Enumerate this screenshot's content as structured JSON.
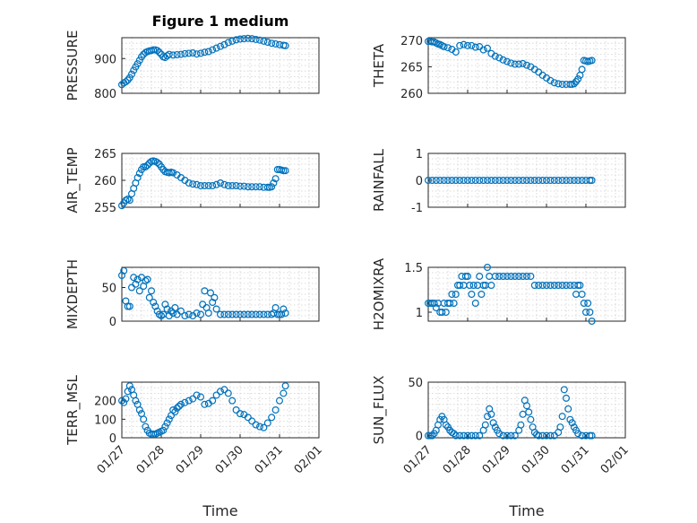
{
  "figure": {
    "title": "Figure 1 medium",
    "xlabel": "Time"
  },
  "colors": {
    "marker": "#0072BD",
    "axis": "#262626",
    "grid": "#d0d0d0"
  },
  "chart_data": [
    {
      "type": "scatter",
      "name": "PRESSURE",
      "ylabel": "PRESSURE",
      "ylim": [
        800,
        960
      ],
      "yticks": [
        800,
        900
      ],
      "xlim": [
        0,
        5
      ],
      "x": [
        0,
        0.05,
        0.1,
        0.15,
        0.2,
        0.25,
        0.3,
        0.35,
        0.4,
        0.45,
        0.5,
        0.55,
        0.6,
        0.65,
        0.7,
        0.75,
        0.8,
        0.85,
        0.9,
        0.95,
        1.0,
        1.05,
        1.1,
        1.15,
        1.2,
        1.3,
        1.4,
        1.5,
        1.6,
        1.7,
        1.8,
        1.9,
        2.0,
        2.1,
        2.2,
        2.3,
        2.4,
        2.5,
        2.6,
        2.7,
        2.8,
        2.9,
        3.0,
        3.1,
        3.2,
        3.3,
        3.4,
        3.5,
        3.6,
        3.7,
        3.8,
        3.9,
        4.0,
        4.1,
        4.15
      ],
      "y": [
        825,
        830,
        833,
        838,
        845,
        855,
        866,
        876,
        885,
        895,
        905,
        912,
        917,
        920,
        922,
        923,
        925,
        925,
        923,
        918,
        912,
        905,
        903,
        908,
        912,
        910,
        911,
        912,
        914,
        915,
        916,
        913,
        915,
        918,
        920,
        925,
        930,
        935,
        940,
        946,
        950,
        954,
        956,
        957,
        958,
        957,
        955,
        953,
        950,
        947,
        944,
        942,
        940,
        938,
        937
      ]
    },
    {
      "type": "scatter",
      "name": "THETA",
      "ylabel": "THETA",
      "ylim": [
        260,
        270.5
      ],
      "yticks": [
        260,
        265,
        270
      ],
      "xlim": [
        0,
        5
      ],
      "x": [
        0,
        0.05,
        0.1,
        0.15,
        0.2,
        0.25,
        0.3,
        0.35,
        0.4,
        0.5,
        0.6,
        0.7,
        0.8,
        0.9,
        1.0,
        1.1,
        1.2,
        1.3,
        1.4,
        1.5,
        1.6,
        1.7,
        1.8,
        1.9,
        2.0,
        2.1,
        2.2,
        2.3,
        2.4,
        2.5,
        2.6,
        2.7,
        2.8,
        2.9,
        3.0,
        3.1,
        3.2,
        3.3,
        3.4,
        3.5,
        3.6,
        3.65,
        3.7,
        3.75,
        3.8,
        3.85,
        3.9,
        3.95,
        4.0,
        4.05,
        4.1,
        4.15
      ],
      "y": [
        269.8,
        269.8,
        269.7,
        269.7,
        269.5,
        269.3,
        269.2,
        269,
        268.8,
        268.6,
        268.3,
        267.8,
        269,
        269.2,
        269,
        269,
        268.7,
        268.8,
        268.2,
        268.5,
        267.5,
        267,
        266.7,
        266.3,
        266,
        265.7,
        265.5,
        265.5,
        265.6,
        265.3,
        265,
        264.5,
        264,
        263.4,
        262.9,
        262.4,
        262,
        261.8,
        261.7,
        261.7,
        261.7,
        261.7,
        261.8,
        262.2,
        262.7,
        263.4,
        264.5,
        266.2,
        266.1,
        266,
        266.1,
        266.2
      ]
    },
    {
      "type": "scatter",
      "name": "AIR_TEMP",
      "ylabel": "AIR_TEMP",
      "ylim": [
        255,
        265
      ],
      "yticks": [
        255,
        260,
        265
      ],
      "xlim": [
        0,
        5
      ],
      "x": [
        0,
        0.05,
        0.1,
        0.15,
        0.2,
        0.25,
        0.3,
        0.35,
        0.4,
        0.45,
        0.5,
        0.55,
        0.6,
        0.65,
        0.7,
        0.75,
        0.8,
        0.85,
        0.9,
        0.95,
        1.0,
        1.05,
        1.1,
        1.15,
        1.2,
        1.25,
        1.3,
        1.4,
        1.5,
        1.6,
        1.7,
        1.8,
        1.9,
        2.0,
        2.1,
        2.2,
        2.3,
        2.4,
        2.5,
        2.6,
        2.7,
        2.8,
        2.9,
        3.0,
        3.1,
        3.2,
        3.3,
        3.4,
        3.5,
        3.6,
        3.7,
        3.75,
        3.8,
        3.85,
        3.9,
        3.95,
        4.0,
        4.05,
        4.1,
        4.15
      ],
      "y": [
        255.3,
        255.8,
        256.3,
        256.5,
        256.3,
        257.5,
        258.5,
        259.5,
        260.5,
        261.3,
        262,
        262.5,
        262.5,
        262.8,
        263.2,
        263.5,
        263.6,
        263.5,
        263.3,
        263,
        262.5,
        262,
        261.6,
        261.5,
        261.4,
        261.5,
        261.4,
        261,
        260.5,
        260,
        259.5,
        259.3,
        259.2,
        259,
        259,
        259,
        259,
        259.2,
        259.5,
        259.2,
        259,
        259,
        259,
        258.9,
        258.9,
        258.8,
        258.8,
        258.8,
        258.8,
        258.7,
        258.7,
        258.7,
        258.8,
        259.5,
        260.3,
        262,
        262,
        261.9,
        261.8,
        261.8
      ]
    },
    {
      "type": "scatter",
      "name": "RAINFALL",
      "ylabel": "RAINFALL",
      "ylim": [
        -1,
        1
      ],
      "yticks": [
        -1,
        0,
        1
      ],
      "xlim": [
        0,
        5
      ],
      "x": [
        0,
        0.1,
        0.2,
        0.3,
        0.4,
        0.5,
        0.6,
        0.7,
        0.8,
        0.9,
        1.0,
        1.1,
        1.2,
        1.3,
        1.4,
        1.5,
        1.6,
        1.7,
        1.8,
        1.9,
        2.0,
        2.1,
        2.2,
        2.3,
        2.4,
        2.5,
        2.6,
        2.7,
        2.8,
        2.9,
        3.0,
        3.1,
        3.2,
        3.3,
        3.4,
        3.5,
        3.6,
        3.7,
        3.8,
        3.9,
        4.0,
        4.1,
        4.15
      ],
      "y": [
        0,
        0,
        0,
        0,
        0,
        0,
        0,
        0,
        0,
        0,
        0,
        0,
        0,
        0,
        0,
        0,
        0,
        0,
        0,
        0,
        0,
        0,
        0,
        0,
        0,
        0,
        0,
        0,
        0,
        0,
        0,
        0,
        0,
        0,
        0,
        0,
        0,
        0,
        0,
        0,
        0,
        0,
        0
      ]
    },
    {
      "type": "scatter",
      "name": "MIXDEPTH",
      "ylabel": "MIXDEPTH",
      "ylim": [
        0,
        80
      ],
      "yticks": [
        0,
        50
      ],
      "xlim": [
        0,
        5
      ],
      "x": [
        0,
        0.05,
        0.1,
        0.15,
        0.2,
        0.25,
        0.3,
        0.35,
        0.4,
        0.45,
        0.5,
        0.55,
        0.6,
        0.65,
        0.7,
        0.75,
        0.8,
        0.85,
        0.9,
        0.95,
        1.0,
        1.05,
        1.1,
        1.15,
        1.2,
        1.25,
        1.3,
        1.35,
        1.4,
        1.5,
        1.6,
        1.7,
        1.8,
        1.9,
        2.0,
        2.05,
        2.1,
        2.15,
        2.2,
        2.25,
        2.3,
        2.35,
        2.4,
        2.5,
        2.6,
        2.7,
        2.8,
        2.9,
        3.0,
        3.1,
        3.2,
        3.3,
        3.4,
        3.5,
        3.6,
        3.7,
        3.8,
        3.85,
        3.9,
        3.95,
        4.0,
        4.05,
        4.1,
        4.15
      ],
      "y": [
        68,
        75,
        30,
        22,
        22,
        50,
        65,
        55,
        62,
        45,
        65,
        52,
        60,
        62,
        35,
        45,
        28,
        22,
        15,
        10,
        8,
        10,
        25,
        18,
        8,
        15,
        12,
        20,
        10,
        15,
        8,
        10,
        8,
        12,
        10,
        25,
        45,
        20,
        12,
        42,
        28,
        35,
        18,
        10,
        10,
        10,
        10,
        10,
        10,
        10,
        10,
        10,
        10,
        10,
        10,
        10,
        10,
        12,
        20,
        10,
        10,
        10,
        18,
        12
      ]
    },
    {
      "type": "scatter",
      "name": "H2OMIXRA",
      "ylabel": "H2OMIXRA",
      "ylim": [
        0.9,
        1.5
      ],
      "yticks": [
        1,
        1.5
      ],
      "xlim": [
        0,
        5
      ],
      "x": [
        0,
        0.05,
        0.1,
        0.15,
        0.2,
        0.25,
        0.3,
        0.35,
        0.4,
        0.45,
        0.5,
        0.55,
        0.6,
        0.65,
        0.7,
        0.75,
        0.8,
        0.85,
        0.9,
        0.95,
        1.0,
        1.05,
        1.1,
        1.15,
        1.2,
        1.25,
        1.3,
        1.35,
        1.4,
        1.45,
        1.5,
        1.55,
        1.6,
        1.7,
        1.8,
        1.9,
        2.0,
        2.1,
        2.2,
        2.3,
        2.4,
        2.5,
        2.6,
        2.7,
        2.8,
        2.9,
        3.0,
        3.1,
        3.2,
        3.3,
        3.4,
        3.5,
        3.6,
        3.7,
        3.75,
        3.8,
        3.85,
        3.9,
        3.95,
        4.0,
        4.05,
        4.1,
        4.15
      ],
      "y": [
        1.1,
        1.1,
        1.1,
        1.1,
        1.05,
        1.1,
        1.0,
        1.0,
        1.1,
        1.0,
        1.1,
        1.1,
        1.2,
        1.1,
        1.2,
        1.3,
        1.3,
        1.4,
        1.3,
        1.4,
        1.4,
        1.3,
        1.2,
        1.3,
        1.1,
        1.3,
        1.4,
        1.2,
        1.3,
        1.3,
        1.5,
        1.4,
        1.3,
        1.4,
        1.4,
        1.4,
        1.4,
        1.4,
        1.4,
        1.4,
        1.4,
        1.4,
        1.4,
        1.3,
        1.3,
        1.3,
        1.3,
        1.3,
        1.3,
        1.3,
        1.3,
        1.3,
        1.3,
        1.3,
        1.2,
        1.3,
        1.3,
        1.2,
        1.1,
        1.0,
        1.1,
        1.0,
        0.9
      ]
    },
    {
      "type": "scatter",
      "name": "TERR_MSL",
      "ylabel": "TERR_MSL",
      "ylim": [
        0,
        300
      ],
      "yticks": [
        0,
        100,
        200
      ],
      "xlim": [
        0,
        5
      ],
      "x": [
        0,
        0.05,
        0.1,
        0.15,
        0.2,
        0.25,
        0.3,
        0.35,
        0.4,
        0.45,
        0.5,
        0.55,
        0.6,
        0.65,
        0.7,
        0.75,
        0.8,
        0.85,
        0.9,
        0.95,
        1.0,
        1.05,
        1.1,
        1.15,
        1.2,
        1.25,
        1.3,
        1.35,
        1.4,
        1.45,
        1.5,
        1.6,
        1.7,
        1.8,
        1.9,
        2.0,
        2.1,
        2.2,
        2.3,
        2.4,
        2.5,
        2.6,
        2.7,
        2.8,
        2.9,
        3.0,
        3.1,
        3.2,
        3.3,
        3.4,
        3.5,
        3.6,
        3.7,
        3.8,
        3.9,
        4.0,
        4.1,
        4.15
      ],
      "y": [
        200,
        190,
        210,
        250,
        280,
        260,
        230,
        200,
        180,
        150,
        130,
        100,
        60,
        40,
        25,
        20,
        20,
        20,
        25,
        30,
        35,
        40,
        60,
        80,
        100,
        120,
        150,
        140,
        160,
        170,
        180,
        190,
        200,
        210,
        230,
        220,
        180,
        185,
        200,
        230,
        250,
        260,
        240,
        200,
        150,
        130,
        125,
        110,
        90,
        70,
        60,
        55,
        80,
        110,
        150,
        200,
        240,
        280
      ]
    },
    {
      "type": "scatter",
      "name": "SUN_FLUX",
      "ylabel": "SUN_FLUX",
      "ylim": [
        -2,
        50
      ],
      "yticks": [
        0,
        50
      ],
      "xlim": [
        0,
        5
      ],
      "x": [
        0,
        0.05,
        0.1,
        0.15,
        0.2,
        0.25,
        0.3,
        0.35,
        0.4,
        0.45,
        0.5,
        0.55,
        0.6,
        0.65,
        0.7,
        0.8,
        0.9,
        1.0,
        1.1,
        1.2,
        1.3,
        1.4,
        1.45,
        1.5,
        1.55,
        1.6,
        1.65,
        1.7,
        1.75,
        1.8,
        1.9,
        2.0,
        2.1,
        2.2,
        2.3,
        2.35,
        2.4,
        2.45,
        2.5,
        2.55,
        2.6,
        2.65,
        2.7,
        2.75,
        2.8,
        2.9,
        3.0,
        3.1,
        3.2,
        3.3,
        3.35,
        3.4,
        3.45,
        3.5,
        3.55,
        3.6,
        3.65,
        3.7,
        3.75,
        3.8,
        3.9,
        4.0,
        4.1,
        4.15
      ],
      "y": [
        0,
        0,
        0,
        2,
        5,
        10,
        15,
        18,
        15,
        10,
        8,
        5,
        3,
        2,
        0,
        0,
        0,
        0,
        0,
        0,
        0,
        5,
        10,
        18,
        25,
        20,
        12,
        8,
        5,
        2,
        0,
        0,
        0,
        0,
        5,
        10,
        20,
        33,
        28,
        22,
        15,
        8,
        3,
        1,
        0,
        0,
        0,
        0,
        0,
        3,
        8,
        18,
        43,
        35,
        25,
        15,
        12,
        8,
        5,
        2,
        0,
        0,
        0,
        0
      ]
    }
  ],
  "x_axis": {
    "ticks": [
      0,
      1,
      2,
      3,
      4,
      5
    ],
    "labels": [
      "01/27",
      "01/28",
      "01/29",
      "01/30",
      "01/31",
      "02/01"
    ]
  }
}
